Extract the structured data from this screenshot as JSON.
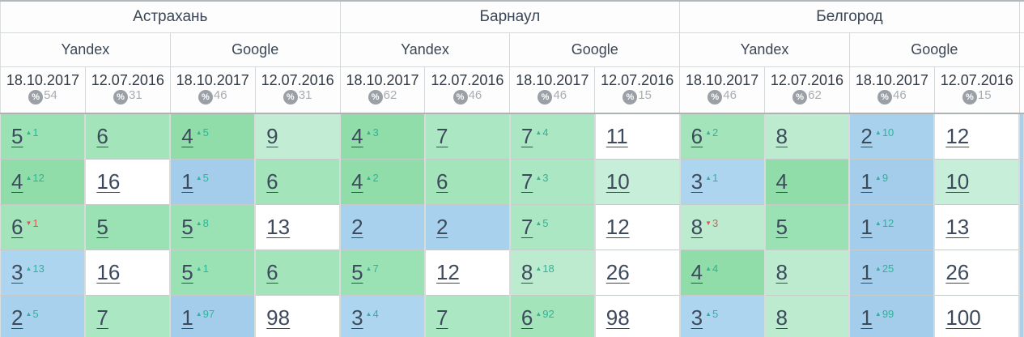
{
  "percent_symbol": "%",
  "arrow_up_symbol": "▲",
  "arrow_down_symbol": "▼",
  "palette": {
    "pos1": "#a3cdeb",
    "pos2": "#a8d1ee",
    "pos3": "#aed5f0",
    "pos4": "#90ddaa",
    "pos5": "#9ae1b3",
    "pos6": "#a3e4bb",
    "pos7": "#ace7c3",
    "pos8": "#bdebd0",
    "pos9": "#c2ecd4",
    "pos10": "#c7eed8",
    "none": "#ffffff",
    "up": "#2db49a",
    "down": "#e2574d",
    "sliver": "#a9d1ee",
    "header_bg": "#fdfdfd",
    "badge_bg": "#9aa0a6"
  },
  "cities": [
    {
      "name": "Астрахань",
      "engines": [
        {
          "name": "Yandex",
          "dates": [
            {
              "date": "18.10.2017",
              "visibility": "54"
            },
            {
              "date": "12.07.2016",
              "visibility": "31"
            }
          ]
        },
        {
          "name": "Google",
          "dates": [
            {
              "date": "18.10.2017",
              "visibility": "46"
            },
            {
              "date": "12.07.2016",
              "visibility": "31"
            }
          ]
        }
      ]
    },
    {
      "name": "Барнаул",
      "engines": [
        {
          "name": "Yandex",
          "dates": [
            {
              "date": "18.10.2017",
              "visibility": "62"
            },
            {
              "date": "12.07.2016",
              "visibility": "46"
            }
          ]
        },
        {
          "name": "Google",
          "dates": [
            {
              "date": "18.10.2017",
              "visibility": "46"
            },
            {
              "date": "12.07.2016",
              "visibility": "15"
            }
          ]
        }
      ]
    },
    {
      "name": "Белгород",
      "engines": [
        {
          "name": "Yandex",
          "dates": [
            {
              "date": "18.10.2017",
              "visibility": "46"
            },
            {
              "date": "12.07.2016",
              "visibility": "62"
            }
          ]
        },
        {
          "name": "Google",
          "dates": [
            {
              "date": "18.10.2017",
              "visibility": "46"
            },
            {
              "date": "12.07.2016",
              "visibility": "15"
            }
          ]
        }
      ]
    }
  ],
  "rows": [
    [
      {
        "pos": "5",
        "change": "1",
        "dir": "up",
        "bg": "pos5"
      },
      {
        "pos": "6",
        "bg": "pos6"
      },
      {
        "pos": "4",
        "change": "5",
        "dir": "up",
        "bg": "pos4"
      },
      {
        "pos": "9",
        "bg": "pos9"
      },
      {
        "pos": "4",
        "change": "3",
        "dir": "up",
        "bg": "pos4"
      },
      {
        "pos": "7",
        "bg": "pos7"
      },
      {
        "pos": "7",
        "change": "4",
        "dir": "up",
        "bg": "pos7"
      },
      {
        "pos": "11",
        "bg": "none"
      },
      {
        "pos": "6",
        "change": "2",
        "dir": "up",
        "bg": "pos6"
      },
      {
        "pos": "8",
        "bg": "pos8"
      },
      {
        "pos": "2",
        "change": "10",
        "dir": "up",
        "bg": "pos2"
      },
      {
        "pos": "12",
        "bg": "none"
      }
    ],
    [
      {
        "pos": "4",
        "change": "12",
        "dir": "up",
        "bg": "pos4"
      },
      {
        "pos": "16",
        "bg": "none"
      },
      {
        "pos": "1",
        "change": "5",
        "dir": "up",
        "bg": "pos1"
      },
      {
        "pos": "6",
        "bg": "pos6"
      },
      {
        "pos": "4",
        "change": "2",
        "dir": "up",
        "bg": "pos4"
      },
      {
        "pos": "6",
        "bg": "pos6"
      },
      {
        "pos": "7",
        "change": "3",
        "dir": "up",
        "bg": "pos7"
      },
      {
        "pos": "10",
        "bg": "pos10"
      },
      {
        "pos": "3",
        "change": "1",
        "dir": "up",
        "bg": "pos3"
      },
      {
        "pos": "4",
        "bg": "pos4"
      },
      {
        "pos": "1",
        "change": "9",
        "dir": "up",
        "bg": "pos1"
      },
      {
        "pos": "10",
        "bg": "pos10"
      }
    ],
    [
      {
        "pos": "6",
        "change": "1",
        "dir": "down",
        "bg": "pos6"
      },
      {
        "pos": "5",
        "bg": "pos5"
      },
      {
        "pos": "5",
        "change": "8",
        "dir": "up",
        "bg": "pos5"
      },
      {
        "pos": "13",
        "bg": "none"
      },
      {
        "pos": "2",
        "bg": "pos2"
      },
      {
        "pos": "2",
        "bg": "pos2"
      },
      {
        "pos": "7",
        "change": "5",
        "dir": "up",
        "bg": "pos7"
      },
      {
        "pos": "12",
        "bg": "none"
      },
      {
        "pos": "8",
        "change": "3",
        "dir": "down",
        "bg": "pos8"
      },
      {
        "pos": "5",
        "bg": "pos5"
      },
      {
        "pos": "1",
        "change": "12",
        "dir": "up",
        "bg": "pos1"
      },
      {
        "pos": "13",
        "bg": "none"
      }
    ],
    [
      {
        "pos": "3",
        "change": "13",
        "dir": "up",
        "bg": "pos3"
      },
      {
        "pos": "16",
        "bg": "none"
      },
      {
        "pos": "5",
        "change": "1",
        "dir": "up",
        "bg": "pos5"
      },
      {
        "pos": "6",
        "bg": "pos6"
      },
      {
        "pos": "5",
        "change": "7",
        "dir": "up",
        "bg": "pos5"
      },
      {
        "pos": "12",
        "bg": "none"
      },
      {
        "pos": "8",
        "change": "18",
        "dir": "up",
        "bg": "pos8"
      },
      {
        "pos": "26",
        "bg": "none"
      },
      {
        "pos": "4",
        "change": "4",
        "dir": "up",
        "bg": "pos4"
      },
      {
        "pos": "8",
        "bg": "pos8"
      },
      {
        "pos": "1",
        "change": "25",
        "dir": "up",
        "bg": "pos1"
      },
      {
        "pos": "26",
        "bg": "none"
      }
    ],
    [
      {
        "pos": "2",
        "change": "5",
        "dir": "up",
        "bg": "pos2"
      },
      {
        "pos": "7",
        "bg": "pos7"
      },
      {
        "pos": "1",
        "change": "97",
        "dir": "up",
        "bg": "pos1"
      },
      {
        "pos": "98",
        "bg": "none"
      },
      {
        "pos": "3",
        "change": "4",
        "dir": "up",
        "bg": "pos3"
      },
      {
        "pos": "7",
        "bg": "pos7"
      },
      {
        "pos": "6",
        "change": "92",
        "dir": "up",
        "bg": "pos6"
      },
      {
        "pos": "98",
        "bg": "none"
      },
      {
        "pos": "3",
        "change": "5",
        "dir": "up",
        "bg": "pos3"
      },
      {
        "pos": "8",
        "bg": "pos8"
      },
      {
        "pos": "1",
        "change": "99",
        "dir": "up",
        "bg": "pos1"
      },
      {
        "pos": "100",
        "bg": "none"
      }
    ]
  ]
}
